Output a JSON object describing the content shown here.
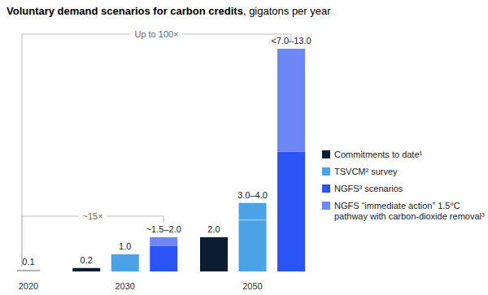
{
  "chart_data": {
    "type": "bar",
    "title": "Voluntary demand scenarios for carbon credits",
    "subtitle": ", gigatons per year",
    "categories": [
      "2020",
      "2030",
      "2050"
    ],
    "stacked": true,
    "data_labels": true,
    "tick_labels": "x",
    "grid": false,
    "legend": "right",
    "series": [
      {
        "color": "#b3b3b3",
        "values": [
          0.1,
          null,
          null
        ],
        "value_labels": [
          "0.1",
          null,
          null
        ]
      },
      {
        "name": "Commitments to date¹",
        "color": "#0b1d30",
        "values": [
          null,
          0.2,
          2.0
        ],
        "value_labels": [
          null,
          "0.2",
          "2.0"
        ]
      },
      {
        "name": "TSVCM² survey",
        "color": "#4ba3e6",
        "values": [
          null,
          1.0,
          3.0
        ],
        "upper": [
          null,
          null,
          4.0
        ],
        "value_labels": [
          null,
          "1.0",
          "3.0–4.0"
        ]
      },
      {
        "name": "NGFS³ scenarios",
        "color": "#2a55f4",
        "values": [
          null,
          1.5,
          7.0
        ],
        "value_labels": [
          null,
          "~1.5–2.0",
          "<7.0–13.0"
        ]
      },
      {
        "name": "NGFS “immediate action” 1.5°C pathway with carbon-dioxide removal³",
        "color": "#6d87f6",
        "values": [
          null,
          0.5,
          6.0
        ]
      }
    ],
    "annotations": [
      {
        "text": "Up to 100×"
      },
      {
        "text": "~15×"
      }
    ]
  }
}
